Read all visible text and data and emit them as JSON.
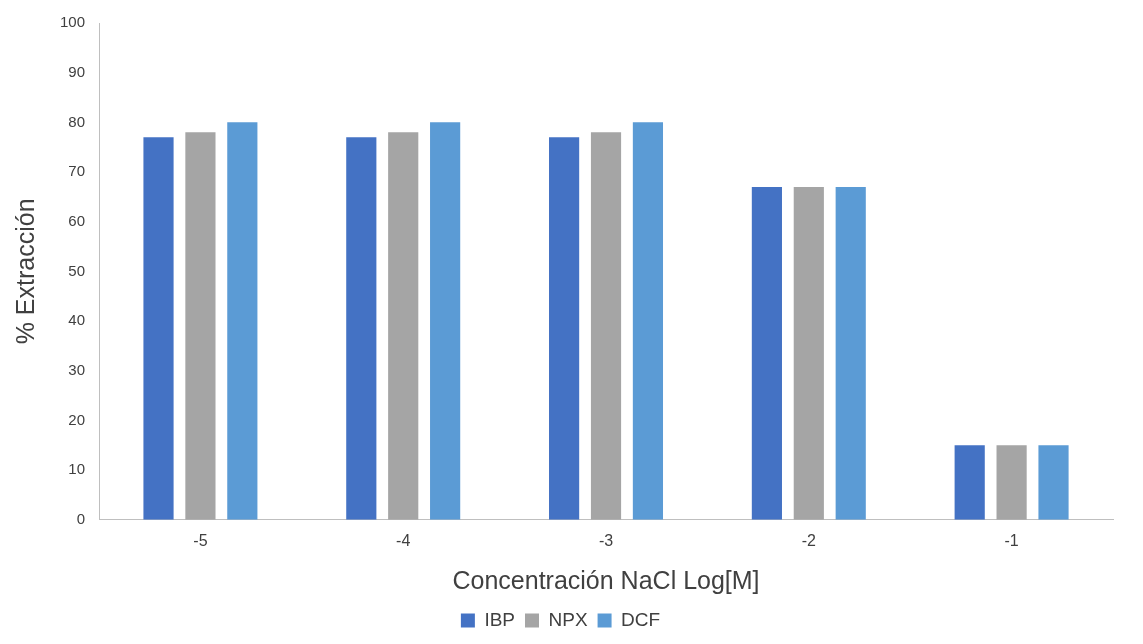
{
  "chart_data": {
    "type": "bar",
    "xlabel": "Concentración NaCl Log[M]",
    "ylabel": "% Extracción",
    "categories": [
      "-5",
      "-4",
      "-3",
      "-2",
      "-1"
    ],
    "series": [
      {
        "name": "IBP",
        "color": "#4472c4",
        "values": [
          77,
          77,
          77,
          67,
          15
        ]
      },
      {
        "name": "NPX",
        "color": "#a5a5a5",
        "values": [
          78,
          78,
          78,
          67,
          15
        ]
      },
      {
        "name": "DCF",
        "color": "#5b9bd5",
        "values": [
          80,
          80,
          80,
          67,
          15
        ]
      }
    ],
    "ylim": [
      0,
      100
    ],
    "yticks": [
      0,
      10,
      20,
      30,
      40,
      50,
      60,
      70,
      80,
      90,
      100
    ],
    "grid": false,
    "legend": "bottom"
  }
}
